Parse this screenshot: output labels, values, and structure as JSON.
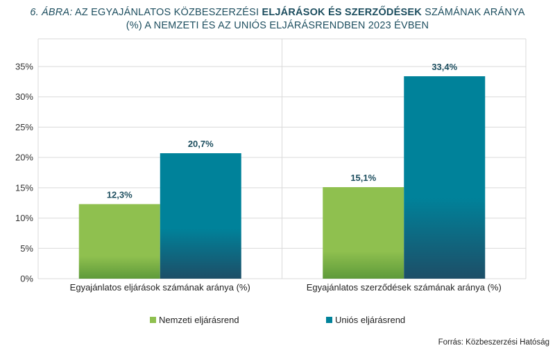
{
  "title": {
    "number": "6. ÁBRA:",
    "part1": " AZ EGYAJÁNLATOS KÖZBESZERZÉSI ",
    "bold": "ELJÁRÁSOK ÉS SZERZŐDÉSEK",
    "part2": " SZÁMÁNAK ARÁNYA",
    "line2": "(%) A NEMZETI ÉS AZ UNIÓS ELJÁRÁSRENDBEN 2023 ÉVBEN"
  },
  "source": "Forrás: Közbeszerzési Hatóság",
  "colors": {
    "green_top": "#8fc04f",
    "green_bottom": "#5e9a3a",
    "teal_top": "#00829a",
    "teal_bottom": "#1d4e67",
    "label": "#1d4e5f",
    "grid": "#d9d9d9"
  },
  "chart_data": {
    "type": "bar",
    "categories": [
      "Egyajánlatos eljárások számának aránya (%)",
      "Egyajánlatos szerződések számának aránya (%)"
    ],
    "series": [
      {
        "name": "Nemzeti eljárásrend",
        "values": [
          12.3,
          15.1
        ],
        "labels": [
          "12,3%",
          "15,1%"
        ]
      },
      {
        "name": "Uniós eljárásrend",
        "values": [
          20.7,
          33.4
        ],
        "labels": [
          "20,7%",
          "33,4%"
        ]
      }
    ],
    "yticks": [
      0,
      5,
      10,
      15,
      20,
      25,
      30,
      35
    ],
    "ytick_labels": [
      "0%",
      "5%",
      "10%",
      "15%",
      "20%",
      "25%",
      "30%",
      "35%"
    ],
    "ylim": [
      0,
      35
    ],
    "legend_position": "bottom"
  }
}
